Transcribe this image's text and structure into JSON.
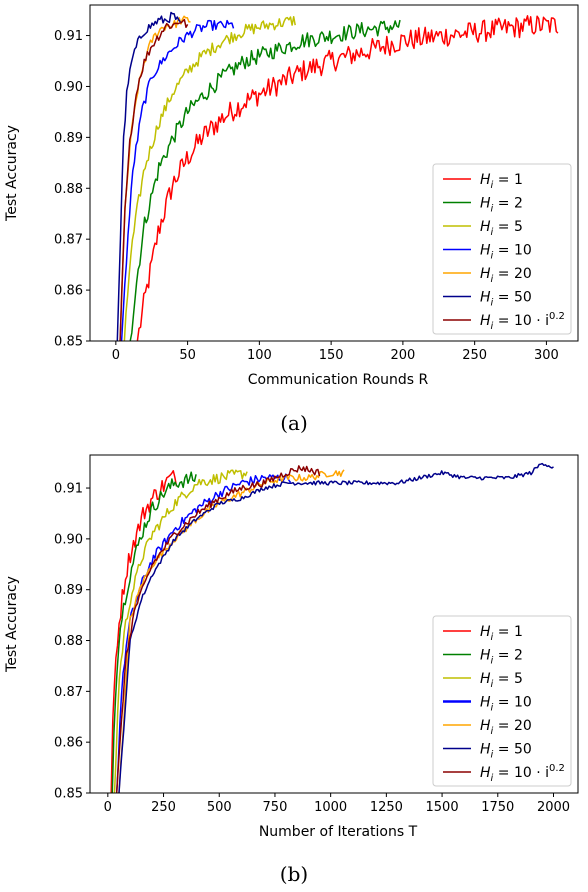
{
  "colors": {
    "h1": "#ff0000",
    "h2": "#008000",
    "h5": "#bfbf00",
    "h10": "#0000ff",
    "h20": "#ffa500",
    "h50": "#00008b",
    "hpow": "#8b0000"
  },
  "chart_data": [
    {
      "type": "line",
      "caption": "(a)",
      "xlabel": "Communication Rounds R",
      "ylabel": "Test Accuracy",
      "xlim": [
        -18,
        322
      ],
      "ylim": [
        0.85,
        0.916
      ],
      "xticks": [
        "0",
        "50",
        "100",
        "150",
        "200",
        "250",
        "300"
      ],
      "yticks": [
        "0.85",
        "0.86",
        "0.87",
        "0.88",
        "0.89",
        "0.90",
        "0.91"
      ],
      "grid": false,
      "legend_position": "lower-right",
      "series": [
        {
          "name": "H_i = 1",
          "color_key": "h1",
          "x": [
            15,
            20,
            30,
            40,
            50,
            60,
            75,
            90,
            110,
            130,
            150,
            175,
            200,
            230,
            260,
            290,
            308
          ],
          "y": [
            0.85,
            0.858,
            0.872,
            0.881,
            0.886,
            0.89,
            0.894,
            0.897,
            0.9,
            0.903,
            0.905,
            0.907,
            0.909,
            0.91,
            0.911,
            0.912,
            0.912
          ],
          "noise": 0.0022
        },
        {
          "name": "H_i = 2",
          "color_key": "h2",
          "x": [
            10,
            15,
            20,
            30,
            40,
            50,
            60,
            75,
            90,
            110,
            130,
            150,
            170,
            198
          ],
          "y": [
            0.85,
            0.863,
            0.873,
            0.884,
            0.89,
            0.895,
            0.898,
            0.902,
            0.905,
            0.907,
            0.909,
            0.91,
            0.911,
            0.912
          ],
          "noise": 0.0016
        },
        {
          "name": "H_i = 5",
          "color_key": "h5",
          "x": [
            6,
            10,
            15,
            20,
            30,
            40,
            50,
            60,
            75,
            90,
            105,
            125
          ],
          "y": [
            0.85,
            0.866,
            0.876,
            0.884,
            0.893,
            0.899,
            0.903,
            0.906,
            0.909,
            0.911,
            0.912,
            0.913
          ],
          "noise": 0.0012
        },
        {
          "name": "H_i = 10",
          "color_key": "h10",
          "x": [
            4,
            8,
            12,
            18,
            25,
            35,
            45,
            55,
            65,
            82
          ],
          "y": [
            0.85,
            0.869,
            0.884,
            0.895,
            0.902,
            0.906,
            0.909,
            0.911,
            0.912,
            0.912
          ],
          "noise": 0.001
        },
        {
          "name": "H_i = 20",
          "color_key": "h20",
          "x": [
            3,
            6,
            10,
            15,
            20,
            25,
            30,
            35,
            40,
            45,
            52
          ],
          "y": [
            0.85,
            0.874,
            0.889,
            0.899,
            0.905,
            0.909,
            0.911,
            0.912,
            0.912,
            0.913,
            0.913
          ],
          "noise": 0.0009
        },
        {
          "name": "H_i = 50",
          "color_key": "h50",
          "x": [
            1,
            3,
            5,
            8,
            12,
            16,
            20,
            25,
            30,
            35,
            40,
            45
          ],
          "y": [
            0.85,
            0.868,
            0.888,
            0.9,
            0.906,
            0.909,
            0.911,
            0.912,
            0.913,
            0.913,
            0.914,
            0.912
          ],
          "noise": 0.0009
        },
        {
          "name": "H_i = 10 · i^0.2",
          "color_key": "hpow",
          "x": [
            3,
            6,
            10,
            15,
            20,
            25,
            30,
            35,
            40,
            45,
            50
          ],
          "y": [
            0.85,
            0.874,
            0.89,
            0.9,
            0.905,
            0.908,
            0.91,
            0.912,
            0.912,
            0.913,
            0.912
          ],
          "noise": 0.0009
        }
      ]
    },
    {
      "type": "line",
      "caption": "(b)",
      "xlabel": "Number of Iterations T",
      "ylabel": "Test Accuracy",
      "xlim": [
        -80,
        2110
      ],
      "ylim": [
        0.85,
        0.9165
      ],
      "xticks": [
        "0",
        "250",
        "500",
        "750",
        "1000",
        "1250",
        "1500",
        "1750",
        "2000"
      ],
      "yticks": [
        "0.85",
        "0.86",
        "0.87",
        "0.88",
        "0.89",
        "0.90",
        "0.91"
      ],
      "grid": false,
      "legend_position": "lower-right",
      "series": [
        {
          "name": "H_i = 1",
          "color_key": "h1",
          "x": [
            15,
            25,
            40,
            60,
            80,
            100,
            130,
            160,
            200,
            240,
            280,
            308
          ],
          "y": [
            0.85,
            0.868,
            0.879,
            0.887,
            0.893,
            0.897,
            0.901,
            0.905,
            0.908,
            0.91,
            0.912,
            0.912
          ],
          "noise": 0.0018
        },
        {
          "name": "H_i = 2",
          "color_key": "h2",
          "x": [
            20,
            30,
            45,
            60,
            80,
            100,
            130,
            160,
            200,
            250,
            300,
            396
          ],
          "y": [
            0.85,
            0.866,
            0.878,
            0.884,
            0.889,
            0.893,
            0.898,
            0.902,
            0.906,
            0.909,
            0.911,
            0.912
          ],
          "noise": 0.0014
        },
        {
          "name": "H_i = 5",
          "color_key": "h5",
          "x": [
            30,
            50,
            75,
            100,
            150,
            200,
            250,
            300,
            350,
            400,
            500,
            625
          ],
          "y": [
            0.85,
            0.872,
            0.882,
            0.888,
            0.896,
            0.901,
            0.904,
            0.907,
            0.909,
            0.911,
            0.912,
            0.913
          ],
          "noise": 0.0011
        },
        {
          "name": "H_i = 10",
          "color_key": "h10",
          "x": [
            40,
            60,
            80,
            100,
            150,
            200,
            300,
            400,
            500,
            600,
            700,
            820
          ],
          "y": [
            0.85,
            0.869,
            0.878,
            0.884,
            0.891,
            0.896,
            0.902,
            0.906,
            0.909,
            0.911,
            0.912,
            0.912
          ],
          "noise": 0.0009
        },
        {
          "name": "H_i = 20",
          "color_key": "h20",
          "x": [
            50,
            100,
            150,
            200,
            300,
            400,
            500,
            600,
            700,
            800,
            900,
            1000,
            1060
          ],
          "y": [
            0.85,
            0.884,
            0.891,
            0.895,
            0.9,
            0.904,
            0.907,
            0.909,
            0.911,
            0.912,
            0.912,
            0.913,
            0.913
          ],
          "noise": 0.0007
        },
        {
          "name": "H_i = 50",
          "color_key": "h50",
          "x": [
            50,
            100,
            150,
            200,
            300,
            400,
            500,
            600,
            700,
            800,
            900,
            1000,
            1100,
            1200,
            1300,
            1400,
            1500,
            1600,
            1700,
            1800,
            1900,
            1950,
            2000
          ],
          "y": [
            0.85,
            0.88,
            0.888,
            0.893,
            0.9,
            0.904,
            0.907,
            0.908,
            0.91,
            0.911,
            0.911,
            0.911,
            0.911,
            0.911,
            0.911,
            0.912,
            0.913,
            0.912,
            0.912,
            0.912,
            0.913,
            0.915,
            0.914
          ],
          "noise": 0.0004
        },
        {
          "name": "H_i = 10 · i^0.2",
          "color_key": "hpow",
          "x": [
            40,
            80,
            120,
            200,
            300,
            400,
            500,
            600,
            700,
            800,
            870,
            950
          ],
          "y": [
            0.85,
            0.876,
            0.886,
            0.895,
            0.901,
            0.905,
            0.908,
            0.91,
            0.911,
            0.913,
            0.914,
            0.913
          ],
          "noise": 0.0007
        }
      ]
    }
  ],
  "legend": [
    {
      "base": "H",
      "sub": "i",
      "rhs": "= 1",
      "sup": "",
      "color_key": "h1"
    },
    {
      "base": "H",
      "sub": "i",
      "rhs": "= 2",
      "sup": "",
      "color_key": "h2"
    },
    {
      "base": "H",
      "sub": "i",
      "rhs": "= 5",
      "sup": "",
      "color_key": "h5"
    },
    {
      "base": "H",
      "sub": "i",
      "rhs": "= 10",
      "sup": "",
      "color_key": "h10"
    },
    {
      "base": "H",
      "sub": "i",
      "rhs": "= 20",
      "sup": "",
      "color_key": "h20"
    },
    {
      "base": "H",
      "sub": "i",
      "rhs": "= 50",
      "sup": "",
      "color_key": "h50"
    },
    {
      "base": "H",
      "sub": "i",
      "rhs": "= 10 · i",
      "sup": "0.2",
      "color_key": "hpow"
    }
  ]
}
